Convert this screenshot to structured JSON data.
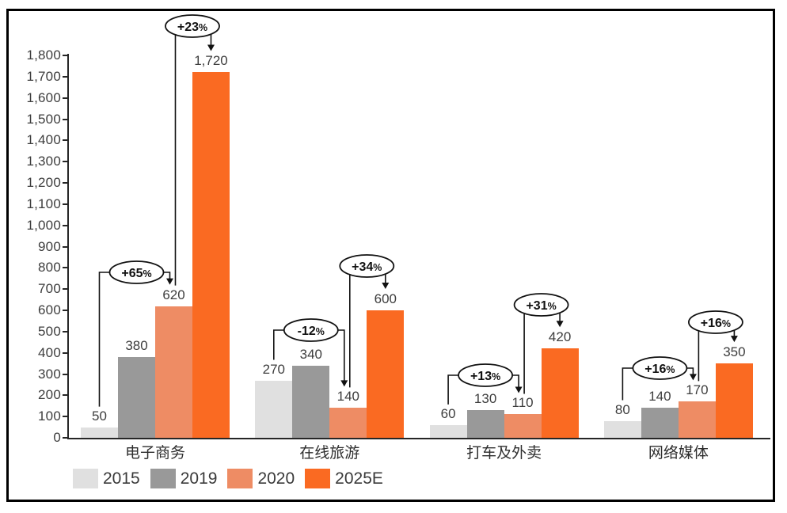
{
  "chart_data": {
    "type": "bar",
    "title": "",
    "xlabel": "",
    "ylabel": "",
    "categories": [
      "电子商务",
      "在线旅游",
      "打车及外卖",
      "网络媒体"
    ],
    "series": [
      {
        "name": "2015",
        "color": "#e0e0e0",
        "values": [
          50,
          270,
          60,
          80
        ]
      },
      {
        "name": "2019",
        "color": "#999999",
        "values": [
          380,
          340,
          130,
          140
        ]
      },
      {
        "name": "2020",
        "color": "#ee8c64",
        "values": [
          620,
          140,
          110,
          170
        ]
      },
      {
        "name": "2025E",
        "color": "#fa6a22",
        "values": [
          1720,
          600,
          420,
          350
        ]
      }
    ],
    "value_labels": [
      [
        "50",
        "270",
        "60",
        "80"
      ],
      [
        "380",
        "340",
        "130",
        "140"
      ],
      [
        "620",
        "140",
        "110",
        "170"
      ],
      [
        "1,720",
        "600",
        "420",
        "350"
      ]
    ],
    "annotations": [
      {
        "category": 0,
        "from_series": 0,
        "to_series": 2,
        "label": "+65%"
      },
      {
        "category": 0,
        "from_series": 2,
        "to_series": 3,
        "label": "+23%"
      },
      {
        "category": 1,
        "from_series": 0,
        "to_series": 2,
        "label": "-12%"
      },
      {
        "category": 1,
        "from_series": 2,
        "to_series": 3,
        "label": "+34%"
      },
      {
        "category": 2,
        "from_series": 0,
        "to_series": 2,
        "label": "+13%"
      },
      {
        "category": 2,
        "from_series": 2,
        "to_series": 3,
        "label": "+31%"
      },
      {
        "category": 3,
        "from_series": 0,
        "to_series": 2,
        "label": "+16%"
      },
      {
        "category": 3,
        "from_series": 2,
        "to_series": 3,
        "label": "+16%"
      }
    ],
    "y_axis": {
      "min": 0,
      "max": 1800,
      "step": 100
    },
    "ylim": [
      0,
      1800
    ],
    "grid": false,
    "legend_position": "bottom-left"
  }
}
